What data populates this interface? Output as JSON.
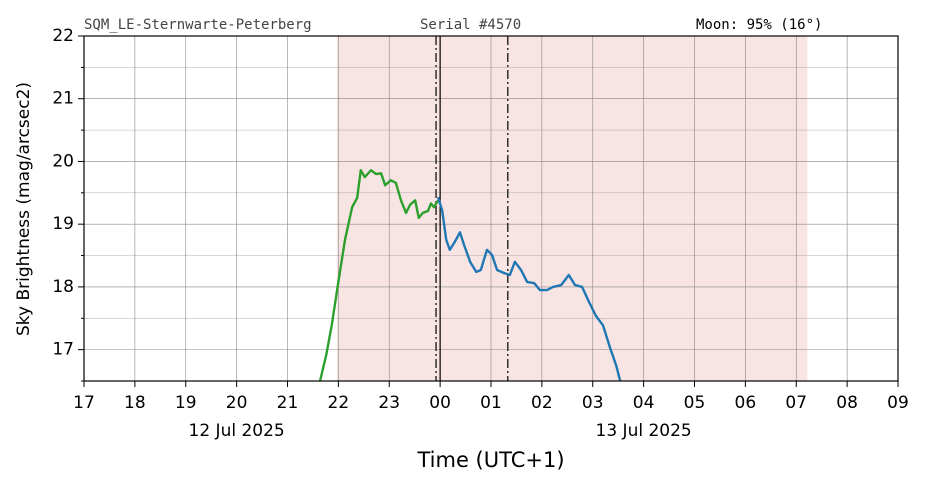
{
  "chart_data": {
    "type": "line",
    "header": [
      "SQM_LE-Sternwarte-Peterberg",
      "Serial #4570",
      "Moon: 95% (16°)"
    ],
    "xlabel": "Time (UTC+1)",
    "ylabel": "Sky Brightness (mag/arcsec2)",
    "xlim": [
      17,
      33
    ],
    "ylim": [
      16.5,
      22
    ],
    "xticks": [
      17,
      18,
      19,
      20,
      21,
      22,
      23,
      {
        "value": 24,
        "label": "00"
      },
      {
        "value": 25,
        "label": "01"
      },
      {
        "value": 26,
        "label": "02"
      },
      {
        "value": 27,
        "label": "03"
      },
      {
        "value": 28,
        "label": "04"
      },
      {
        "value": 29,
        "label": "05"
      },
      {
        "value": 30,
        "label": "06"
      },
      {
        "value": 31,
        "label": "07"
      },
      {
        "value": 32,
        "label": "08"
      },
      {
        "value": 33,
        "label": "09"
      }
    ],
    "yticks": [
      17,
      18,
      19,
      20,
      21,
      22
    ],
    "yminor": [
      16.5,
      17.5,
      18.5,
      19.5,
      20.5,
      21.5
    ],
    "grid": true,
    "date_labels": [
      {
        "x": 20,
        "text": "12 Jul 2025"
      },
      {
        "x": 28,
        "text": "13 Jul 2025"
      }
    ],
    "night_span": [
      21.97,
      31.22
    ],
    "night_color": "#f9e4e4",
    "dashdot_lines": [
      23.92,
      25.33
    ],
    "solid_line": 24,
    "series": [
      {
        "color": "#2ca02c",
        "x": [
          21.64,
          21.76,
          21.87,
          21.99,
          22.13,
          22.27,
          22.37,
          22.44,
          22.52,
          22.64,
          22.74,
          22.84,
          22.92,
          23.03,
          23.13,
          23.23,
          23.33,
          23.41,
          23.51,
          23.58,
          23.66,
          23.76,
          23.82,
          23.88,
          23.96
        ],
        "values": [
          16.5,
          16.91,
          17.39,
          18.03,
          18.75,
          19.27,
          19.42,
          19.86,
          19.75,
          19.86,
          19.8,
          19.81,
          19.62,
          19.7,
          19.66,
          19.38,
          19.18,
          19.31,
          19.38,
          19.1,
          19.18,
          19.21,
          19.33,
          19.27,
          19.38
        ]
      },
      {
        "color": "#1f77b4",
        "x": [
          23.96,
          24.04,
          24.12,
          24.19,
          24.29,
          24.39,
          24.47,
          24.59,
          24.71,
          24.8,
          24.92,
          25.02,
          25.12,
          25.26,
          25.37,
          25.47,
          25.59,
          25.71,
          25.85,
          25.96,
          26.1,
          26.22,
          26.38,
          26.53,
          26.65,
          26.79,
          26.91,
          27.06,
          27.2,
          27.34,
          27.46,
          27.54
        ],
        "values": [
          19.43,
          19.22,
          18.75,
          18.59,
          18.72,
          18.87,
          18.67,
          18.4,
          18.24,
          18.27,
          18.59,
          18.51,
          18.27,
          18.22,
          18.19,
          18.4,
          18.27,
          18.08,
          18.06,
          17.95,
          17.95,
          18.0,
          18.03,
          18.19,
          18.03,
          18.0,
          17.79,
          17.54,
          17.39,
          17.03,
          16.75,
          16.5
        ]
      }
    ]
  }
}
